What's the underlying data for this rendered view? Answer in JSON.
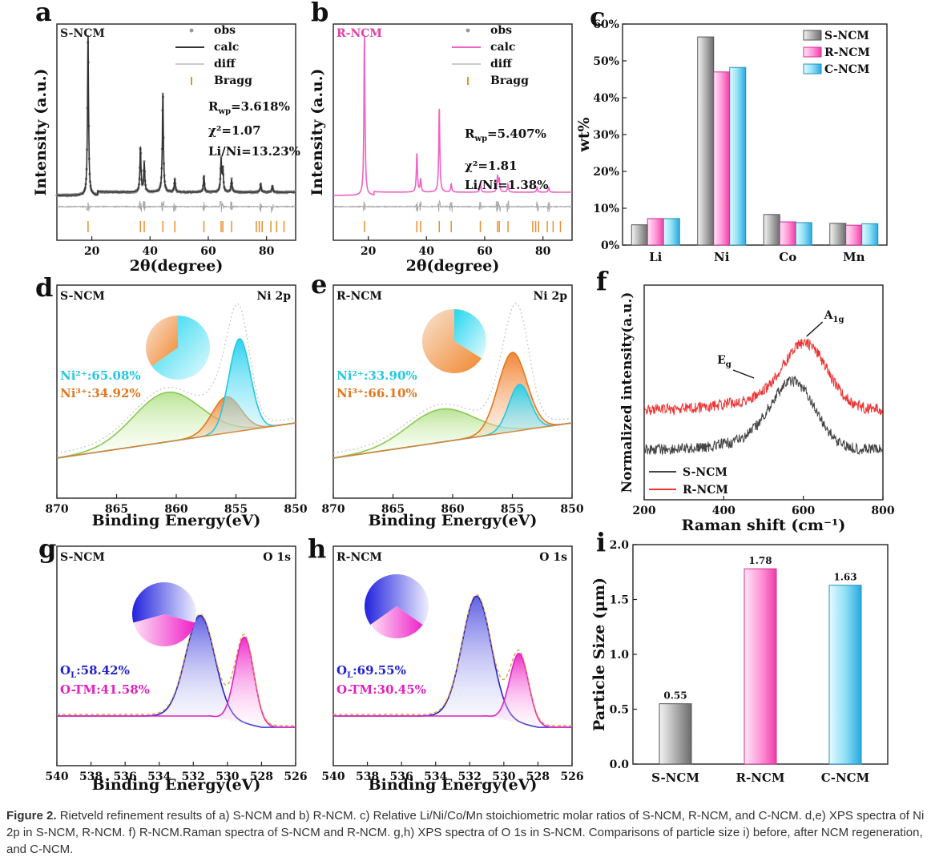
{
  "figure": {
    "panel_letters": [
      "a",
      "b",
      "c",
      "d",
      "e",
      "f",
      "g",
      "h",
      "i"
    ],
    "caption_label": "Figure 2.",
    "caption_text": "Rietveld refinement results of a) S-NCM and b) R-NCM. c) Relative Li/Ni/Co/Mn stoichiometric molar ratios of S-NCM, R-NCM, and C-NCM. d,e) XPS spectra of Ni 2p in S-NCM, R-NCM. f) R-NCM.Raman spectra of S-NCM and R-NCM. g,h) XPS spectra of O 1s in S-NCM. Comparisons of particle size i) before, after NCM regeneration, and C-NCM."
  },
  "colors": {
    "gray": "#9a9a9a",
    "pink": "#ff66cc",
    "cyan": "#33ccee",
    "pink_line": "#f062c4",
    "green": "#a8d878",
    "orange": "#e07820",
    "blue": "#2222cc",
    "magenta": "#e020c0",
    "red": "#ee3333",
    "dark": "#333333"
  },
  "chart_data": [
    {
      "panel": "a",
      "type": "line",
      "sample": "S-NCM",
      "xlabel": "2θ(degree)",
      "ylabel": "Intensity (a.u.)",
      "xlim": [
        8,
        90
      ],
      "xticks": [
        20,
        40,
        60,
        80
      ],
      "legend": [
        "obs",
        "calc",
        "diff",
        "Bragg"
      ],
      "annotations": {
        "rwp": "R_wp=3.618%",
        "chi2": "χ²=1.07",
        "lini": "Li/Ni=13.23%"
      },
      "peaks": [
        [
          18.7,
          1.0
        ],
        [
          36.7,
          0.28
        ],
        [
          38.0,
          0.18
        ],
        [
          44.4,
          0.62
        ],
        [
          48.5,
          0.08
        ],
        [
          58.5,
          0.1
        ],
        [
          64.4,
          0.2
        ],
        [
          65.0,
          0.14
        ],
        [
          68.0,
          0.08
        ],
        [
          78.0,
          0.05
        ],
        [
          82.0,
          0.04
        ]
      ],
      "bragg": [
        18.7,
        36.7,
        38.0,
        44.4,
        48.5,
        58.5,
        64.4,
        65.0,
        68.0,
        76.5,
        77.5,
        78.5,
        81.5,
        83.5,
        86.0
      ]
    },
    {
      "panel": "b",
      "type": "line",
      "sample": "R-NCM",
      "xlabel": "2θ(degree)",
      "ylabel": "Intensity (a.u.)",
      "xlim": [
        8,
        90
      ],
      "xticks": [
        20,
        40,
        60,
        80
      ],
      "legend": [
        "obs",
        "calc",
        "diff",
        "Bragg"
      ],
      "annotations": {
        "rwp": "R_wp=5.407%",
        "chi2": "χ²=1.81",
        "lini": "Li/Ni=1.38%"
      },
      "peaks": [
        [
          18.7,
          1.0
        ],
        [
          36.7,
          0.24
        ],
        [
          38.0,
          0.08
        ],
        [
          44.4,
          0.52
        ],
        [
          48.5,
          0.05
        ],
        [
          58.5,
          0.06
        ],
        [
          64.4,
          0.1
        ],
        [
          65.0,
          0.08
        ],
        [
          68.0,
          0.05
        ],
        [
          78.0,
          0.03
        ],
        [
          82.0,
          0.03
        ]
      ],
      "bragg": [
        18.7,
        36.7,
        38.0,
        44.4,
        48.5,
        58.5,
        64.4,
        65.0,
        68.0,
        76.5,
        77.5,
        78.5,
        81.5,
        83.5,
        86.0
      ]
    },
    {
      "panel": "c",
      "type": "bar",
      "categories": [
        "Li",
        "Ni",
        "Co",
        "Mn"
      ],
      "series": [
        {
          "name": "S-NCM",
          "values": [
            5.5,
            56.5,
            8.3,
            5.9
          ]
        },
        {
          "name": "R-NCM",
          "values": [
            7.2,
            47.0,
            6.3,
            5.4
          ]
        },
        {
          "name": "C-NCM",
          "values": [
            7.2,
            48.2,
            6.1,
            5.8
          ]
        }
      ],
      "ylabel": "wt%",
      "ylim": [
        0,
        60
      ],
      "yticks": [
        "0%",
        "10%",
        "20%",
        "30%",
        "40%",
        "50%",
        "60%"
      ]
    },
    {
      "panel": "d",
      "type": "area",
      "sample": "S-NCM",
      "title": "Ni 2p",
      "xlabel": "Binding Energy(eV)",
      "xlim": [
        870,
        850
      ],
      "xticks": [
        870,
        865,
        860,
        855,
        850
      ],
      "labels": [
        "Ni²⁺:65.08%",
        "Ni³⁺:34.92%"
      ],
      "ni2_fraction": 0.6508,
      "peaks": {
        "ni2": [
          854.7,
          0.56
        ],
        "ni3": [
          855.8,
          0.22
        ],
        "sat": [
          860.8,
          0.3
        ]
      }
    },
    {
      "panel": "e",
      "type": "area",
      "sample": "R-NCM",
      "title": "Ni 2p",
      "xlabel": "Binding Energy(eV)",
      "xlim": [
        870,
        850
      ],
      "xticks": [
        870,
        865,
        860,
        855,
        850
      ],
      "labels": [
        "Ni²⁺:33.90%",
        "Ni³⁺:66.10%"
      ],
      "ni2_fraction": 0.339,
      "peaks": {
        "ni2": [
          854.4,
          0.28
        ],
        "ni3": [
          855.0,
          0.48
        ],
        "sat": [
          861.0,
          0.2
        ]
      }
    },
    {
      "panel": "f",
      "type": "line",
      "xlabel": "Raman shift (cm⁻¹)",
      "ylabel": "Normalized intensity(a.u.)",
      "xlim": [
        200,
        800
      ],
      "xticks": [
        200,
        400,
        600,
        800
      ],
      "legend": [
        "S-NCM",
        "R-NCM"
      ],
      "peak_labels": [
        "E_g",
        "A_1g"
      ],
      "peaks": {
        "eg": 480,
        "a1g": 600
      }
    },
    {
      "panel": "g",
      "type": "area",
      "sample": "S-NCM",
      "title": "O 1s",
      "xlabel": "Binding Energy(eV)",
      "xlim": [
        540,
        526
      ],
      "xticks": [
        540,
        538,
        536,
        534,
        532,
        530,
        528,
        526
      ],
      "labels": [
        "O_L:58.42%",
        "O-TM:41.58%"
      ],
      "ol_fraction": 0.5842,
      "peaks": {
        "ol": [
          531.6,
          0.72
        ],
        "otm": [
          529.0,
          0.62
        ]
      }
    },
    {
      "panel": "h",
      "type": "area",
      "sample": "R-NCM",
      "title": "O 1s",
      "xlabel": "Binding Energy(eV)",
      "xlim": [
        540,
        526
      ],
      "xticks": [
        540,
        538,
        536,
        534,
        532,
        530,
        528,
        526
      ],
      "labels": [
        "O_L:69.55%",
        "O-TM:30.45%"
      ],
      "ol_fraction": 0.6955,
      "peaks": {
        "ol": [
          531.6,
          0.86
        ],
        "otm": [
          529.1,
          0.5
        ]
      }
    },
    {
      "panel": "i",
      "type": "bar",
      "categories": [
        "S-NCM",
        "R-NCM",
        "C-NCM"
      ],
      "values": [
        0.55,
        1.78,
        1.63
      ],
      "ylabel": "Particle Size (μm)",
      "ylim": [
        0,
        2.0
      ],
      "yticks": [
        0.0,
        0.5,
        1.0,
        1.5,
        2.0
      ]
    }
  ]
}
